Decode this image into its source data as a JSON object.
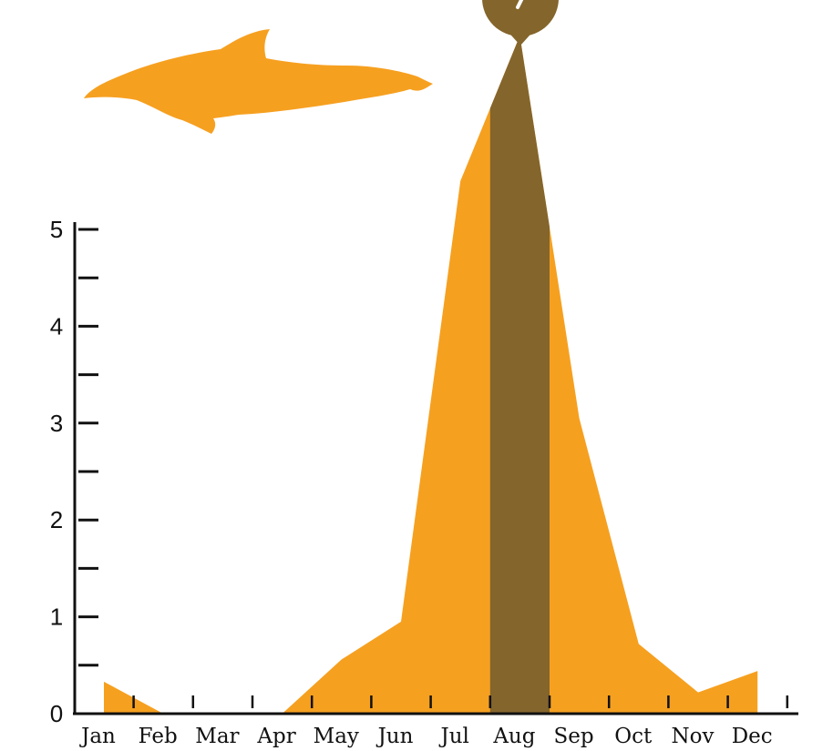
{
  "chart_data": {
    "type": "area",
    "categories": [
      "Jan",
      "Feb",
      "Mar",
      "Apr",
      "May",
      "Jun",
      "Jul",
      "Aug",
      "Sep",
      "Oct",
      "Nov",
      "Dec"
    ],
    "values": [
      0.33,
      0.0,
      0.0,
      0.0,
      0.56,
      0.95,
      5.5,
      7.0,
      3.05,
      0.72,
      0.22,
      0.44
    ],
    "highlight": "Aug",
    "ylim": [
      0,
      5
    ],
    "yticks": [
      0,
      1,
      2,
      3,
      4,
      5
    ],
    "grid": false,
    "legend": "none"
  },
  "colors": {
    "area": "#F6A020",
    "highlight": "#84652C",
    "axis": "#111111",
    "background": "#FFFFFF"
  },
  "icons": {
    "dolphin": "dolphin-silhouette-icon",
    "pin": "location-pin-icon"
  }
}
